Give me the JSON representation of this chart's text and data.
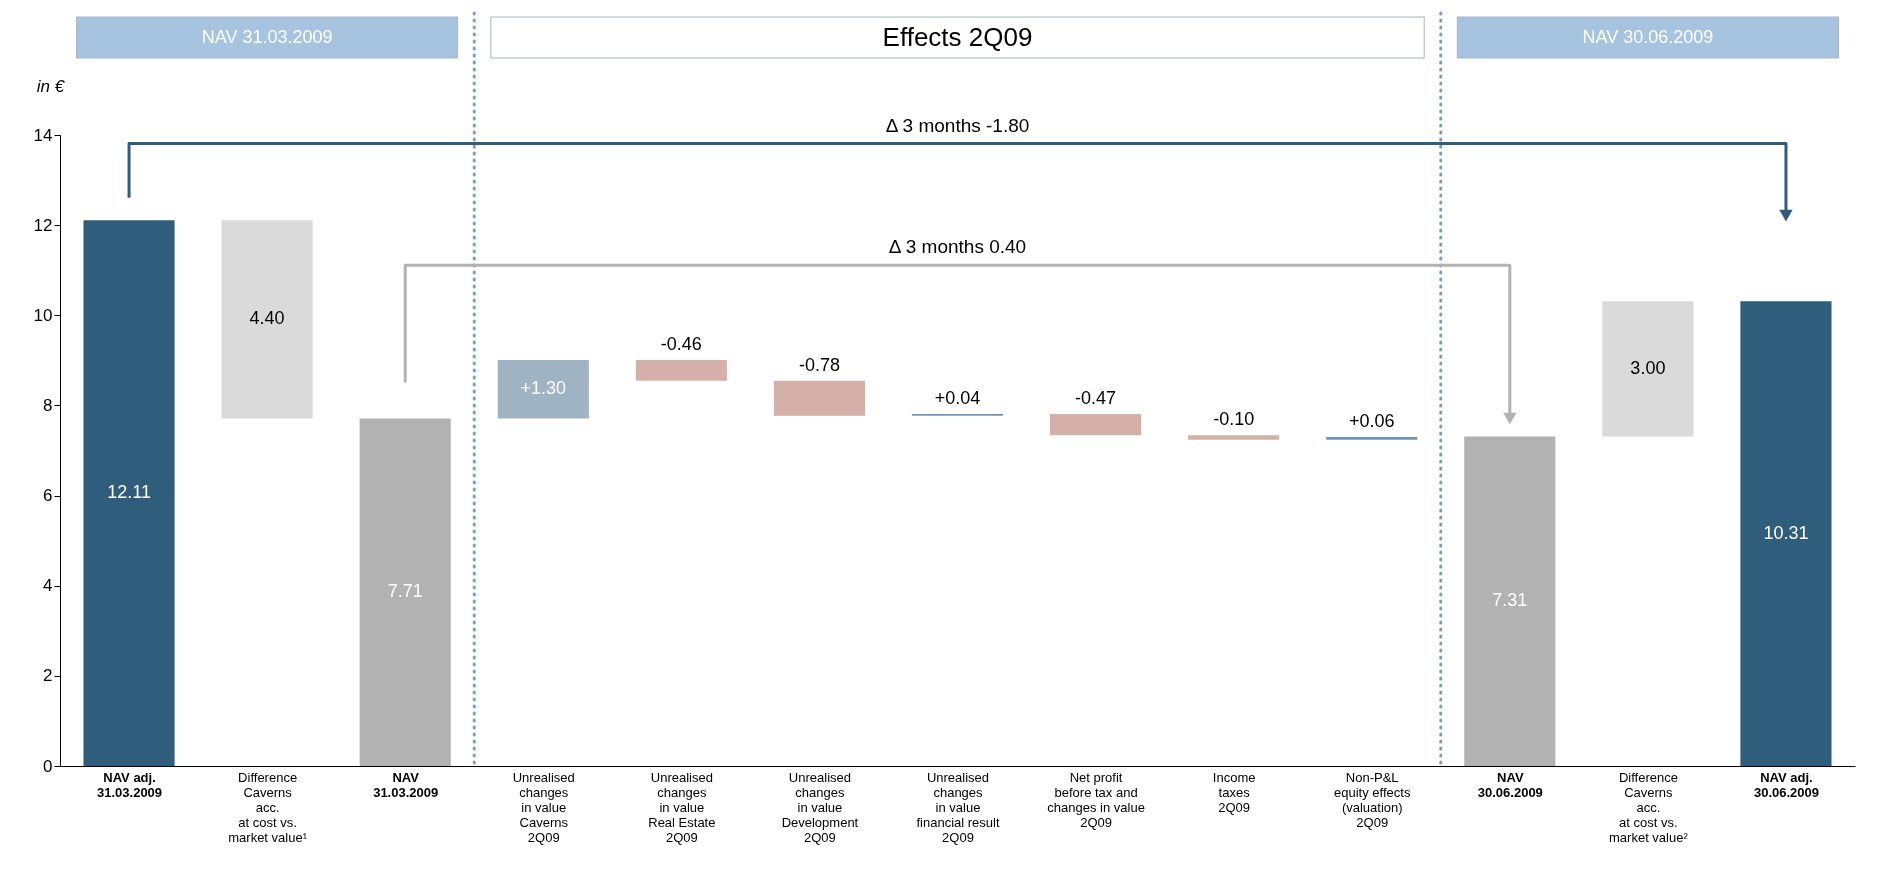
{
  "chart_data": {
    "type": "bar",
    "ylabel": "in €",
    "categories": [
      "NAV adj.\n31.03.2009",
      "Difference\nCaverns\nacc.\nat cost vs.\nmarket value¹",
      "NAV\n31.03.2009",
      "Unrealised\nchanges\nin value\nCaverns\n2Q09",
      "Unrealised\nchanges\nin value\nReal Estate\n2Q09",
      "Unrealised\nchanges\nin value\nDevelopment\n2Q09",
      "Unrealised\nchanges\nin value\nfinancial result\n2Q09",
      "Net profit\nbefore tax and\nchanges in value\n2Q09",
      "Income\ntaxes\n2Q09",
      "Non-P&L\nequity effects\n(valuation)\n2Q09",
      "NAV\n30.06.2009",
      "Difference\nCaverns\nacc.\nat cost vs.\nmarket value²",
      "NAV adj.\n30.06.2009"
    ],
    "values": [
      12.11,
      4.4,
      7.71,
      1.3,
      -0.46,
      -0.78,
      0.04,
      -0.47,
      -0.1,
      0.06,
      7.31,
      3.0,
      10.31
    ],
    "base": [
      0,
      7.71,
      0,
      7.71,
      9.01,
      8.55,
      7.77,
      7.81,
      7.34,
      7.24,
      0,
      7.31,
      0
    ],
    "colors": [
      "#2f5d7c",
      "#dadada",
      "#b2b2b2",
      "#9fb3c2",
      "#d5b0a8",
      "#d5b0a8",
      "#6f95b8",
      "#d5b0a8",
      "#d5b0a8",
      "#6f95b8",
      "#b2b2b2",
      "#dadada",
      "#2f5d7c"
    ],
    "value_labels": [
      "12.11",
      "4.40",
      "7.71",
      "+1.30",
      "-0.46",
      "-0.78",
      "+0.04",
      "-0.47",
      "-0.10",
      "+0.06",
      "7.31",
      "3.00",
      "10.31"
    ],
    "ylim": [
      0,
      14
    ],
    "yticks": [
      0,
      2,
      4,
      6,
      8,
      10,
      12,
      14
    ],
    "annotations": [
      "NAV 31.03.2009",
      "Effects 2Q09",
      "NAV 30.06.2009",
      "Δ 3 months -1.80",
      "Δ 3 months 0.40"
    ]
  }
}
